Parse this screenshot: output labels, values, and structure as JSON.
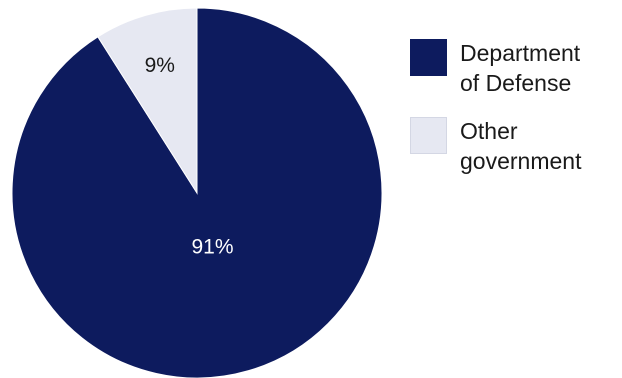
{
  "chart_data": {
    "type": "pie",
    "categories": [
      "Department of Defense",
      "Other government"
    ],
    "values": [
      91,
      9
    ],
    "value_labels": [
      "91%",
      "9%"
    ],
    "legend_labels": [
      "Department\nof Defense",
      "Other\ngovernment"
    ],
    "colors": [
      "#0d1b5e",
      "#e6e8f2"
    ],
    "label_colors": [
      "#ffffff",
      "#1a1a1a"
    ],
    "legend_placement": "right",
    "start": "top",
    "direction": "clockwise"
  }
}
